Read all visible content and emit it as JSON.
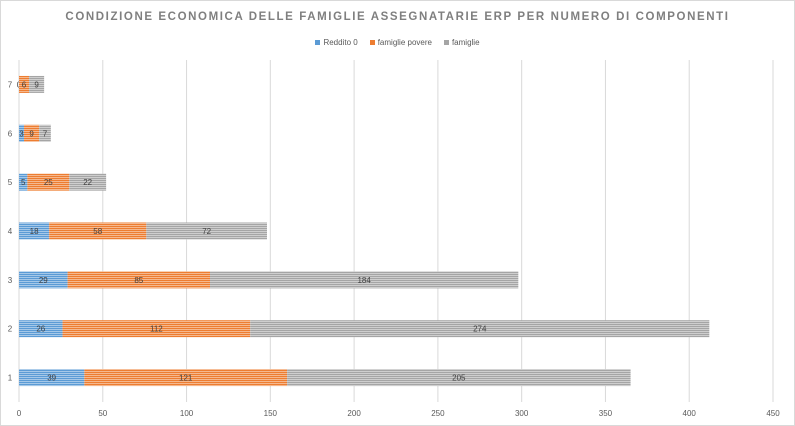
{
  "colors": {
    "reddito0": "#5b9bd5",
    "famiglie_povere": "#ed7d31",
    "famiglie": "#a5a5a5",
    "grid": "#d9d9d9",
    "text": "#595959"
  },
  "chart_data": {
    "type": "bar",
    "orientation": "horizontal",
    "stacked": true,
    "title": "CONDIZIONE ECONOMICA DELLE FAMIGLIE ASSEGNATARIE ERP PER NUMERO DI COMPONENTI",
    "xlabel": "",
    "ylabel": "",
    "categories": [
      "1",
      "2",
      "3",
      "4",
      "5",
      "6",
      "7"
    ],
    "series": [
      {
        "name": "Reddito 0",
        "values": [
          39,
          26,
          29,
          18,
          5,
          3,
          0
        ],
        "color": "#5b9bd5"
      },
      {
        "name": "famiglie povere",
        "values": [
          121,
          112,
          85,
          58,
          25,
          9,
          6
        ],
        "color": "#ed7d31"
      },
      {
        "name": "famiglie",
        "values": [
          205,
          274,
          184,
          72,
          22,
          7,
          9
        ],
        "color": "#a5a5a5"
      }
    ],
    "xlim": [
      0,
      450
    ],
    "xticks": [
      0,
      50,
      100,
      150,
      200,
      250,
      300,
      350,
      400,
      450
    ],
    "grid": true,
    "legend_position": "top"
  }
}
